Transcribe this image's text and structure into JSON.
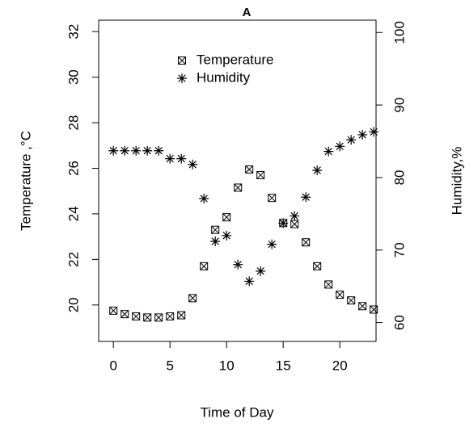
{
  "chart_data": {
    "type": "scatter",
    "title": "A",
    "x_label": "Time of Day",
    "y_label": "Temperature ,°C",
    "y2_label": "Humidity,%",
    "x": [
      0,
      1,
      2,
      3,
      4,
      5,
      6,
      7,
      8,
      9,
      10,
      11,
      12,
      13,
      14,
      15,
      16,
      17,
      18,
      19,
      20,
      21,
      22,
      23
    ],
    "series": [
      {
        "name": "Temperature",
        "color": "#000000",
        "marker": "boxx",
        "values": [
          19.75,
          19.6,
          19.5,
          19.45,
          19.45,
          19.5,
          19.55,
          20.3,
          21.7,
          23.3,
          23.85,
          25.15,
          25.95,
          25.7,
          24.7,
          23.6,
          23.55,
          22.75,
          21.7,
          20.9,
          20.45,
          20.2,
          19.95,
          19.8
        ]
      },
      {
        "name": "Humidity",
        "color": "#000000",
        "marker": "star",
        "axis": "y2",
        "values": [
          83.7,
          83.7,
          83.7,
          83.7,
          83.7,
          82.6,
          82.6,
          81.8,
          77.1,
          71.2,
          72.0,
          68.0,
          65.7,
          67.1,
          70.8,
          73.7,
          74.7,
          77.3,
          81.0,
          83.6,
          84.3,
          85.2,
          85.9,
          86.3
        ]
      }
    ],
    "xlim": [
      -1.3,
      23.2
    ],
    "xticks": [
      0,
      5,
      10,
      15,
      20
    ],
    "ylim": [
      18.4,
      32.5
    ],
    "yticks": [
      20,
      22,
      24,
      26,
      28,
      30,
      32
    ],
    "y2lim": [
      57.4,
      101.7
    ],
    "y2ticks": [
      60,
      70,
      80,
      90,
      100
    ],
    "legend": "top"
  }
}
